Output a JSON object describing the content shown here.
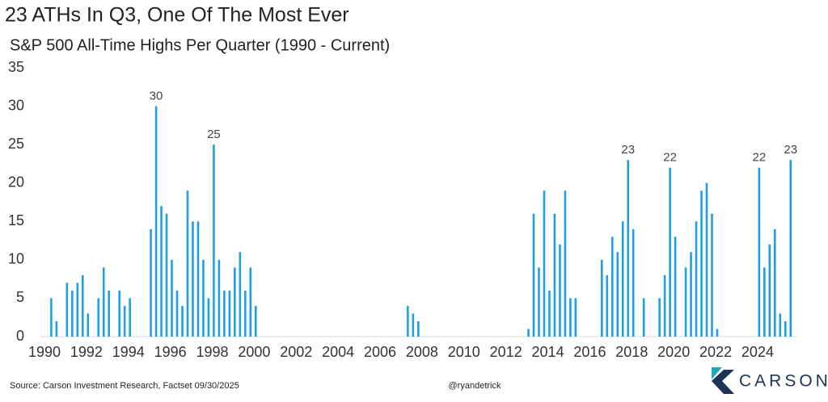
{
  "chart_data": {
    "type": "bar",
    "title": "23 ATHs In Q3, One Of The Most Ever",
    "subtitle": "S&P 500 All-Time Highs Per Quarter (1990 - Current)",
    "source": "Source: Carson Investment Research, Factset 09/30/2025",
    "credit": "@ryandetrick",
    "logo": "CARSON",
    "color": "#1e9fe6",
    "ylim": [
      0,
      35
    ],
    "yticks": [
      0,
      5,
      10,
      15,
      20,
      25,
      30,
      35
    ],
    "grid": false,
    "categories": [
      "1990",
      null,
      null,
      null,
      null,
      null,
      null,
      null,
      "1992",
      null,
      null,
      null,
      null,
      null,
      null,
      null,
      "1994",
      null,
      null,
      null,
      null,
      null,
      null,
      null,
      "1996",
      null,
      null,
      null,
      null,
      null,
      null,
      null,
      "1998",
      null,
      null,
      null,
      null,
      null,
      null,
      null,
      "2000",
      null,
      null,
      null,
      null,
      null,
      null,
      null,
      "2002",
      null,
      null,
      null,
      null,
      null,
      null,
      null,
      "2004",
      null,
      null,
      null,
      null,
      null,
      null,
      null,
      "2006",
      null,
      null,
      null,
      null,
      null,
      null,
      null,
      "2008",
      null,
      null,
      null,
      null,
      null,
      null,
      null,
      "2010",
      null,
      null,
      null,
      null,
      null,
      null,
      null,
      "2012",
      null,
      null,
      null,
      null,
      null,
      null,
      null,
      "2014",
      null,
      null,
      null,
      null,
      null,
      null,
      null,
      "2016",
      null,
      null,
      null,
      null,
      null,
      null,
      null,
      "2018",
      null,
      null,
      null,
      null,
      null,
      null,
      null,
      "2020",
      null,
      null,
      null,
      null,
      null,
      null,
      null,
      "2022",
      null,
      null,
      null,
      null,
      null,
      null,
      null,
      "2024",
      null,
      null,
      null,
      null,
      null,
      null
    ],
    "values": [
      0,
      5,
      2,
      0,
      7,
      6,
      7,
      8,
      3,
      0,
      5,
      9,
      6,
      0,
      6,
      4,
      5,
      0,
      0,
      0,
      14,
      30,
      17,
      16,
      10,
      6,
      4,
      19,
      15,
      15,
      10,
      5,
      25,
      10,
      6,
      6,
      9,
      11,
      6,
      9,
      4,
      0,
      0,
      0,
      0,
      0,
      0,
      0,
      0,
      0,
      0,
      0,
      0,
      0,
      0,
      0,
      0,
      0,
      0,
      0,
      0,
      0,
      0,
      0,
      0,
      0,
      0,
      0,
      0,
      4,
      3,
      2,
      0,
      0,
      0,
      0,
      0,
      0,
      0,
      0,
      0,
      0,
      0,
      0,
      0,
      0,
      0,
      0,
      0,
      0,
      0,
      0,
      1,
      16,
      9,
      19,
      6,
      16,
      12,
      19,
      5,
      5,
      0,
      0,
      0,
      0,
      10,
      8,
      13,
      11,
      15,
      23,
      14,
      0,
      5,
      0,
      0,
      5,
      8,
      22,
      13,
      0,
      9,
      11,
      15,
      19,
      20,
      16,
      1,
      0,
      0,
      0,
      0,
      0,
      0,
      0,
      22,
      9,
      12,
      14,
      3,
      2,
      23
    ],
    "value_labels": [
      null,
      null,
      null,
      null,
      null,
      null,
      null,
      null,
      null,
      null,
      null,
      null,
      null,
      null,
      null,
      null,
      null,
      null,
      null,
      null,
      null,
      "30",
      null,
      null,
      null,
      null,
      null,
      null,
      null,
      null,
      null,
      null,
      "25",
      null,
      null,
      null,
      null,
      null,
      null,
      null,
      null,
      null,
      null,
      null,
      null,
      null,
      null,
      null,
      null,
      null,
      null,
      null,
      null,
      null,
      null,
      null,
      null,
      null,
      null,
      null,
      null,
      null,
      null,
      null,
      null,
      null,
      null,
      null,
      null,
      null,
      null,
      null,
      null,
      null,
      null,
      null,
      null,
      null,
      null,
      null,
      null,
      null,
      null,
      null,
      null,
      null,
      null,
      null,
      null,
      null,
      null,
      null,
      null,
      null,
      null,
      null,
      null,
      null,
      null,
      null,
      null,
      null,
      null,
      null,
      null,
      null,
      null,
      null,
      null,
      null,
      null,
      "23",
      null,
      null,
      null,
      null,
      null,
      null,
      null,
      "22",
      null,
      null,
      null,
      null,
      null,
      null,
      null,
      null,
      null,
      null,
      null,
      null,
      null,
      null,
      null,
      null,
      "22",
      null,
      null,
      null,
      null,
      null,
      "23"
    ]
  }
}
